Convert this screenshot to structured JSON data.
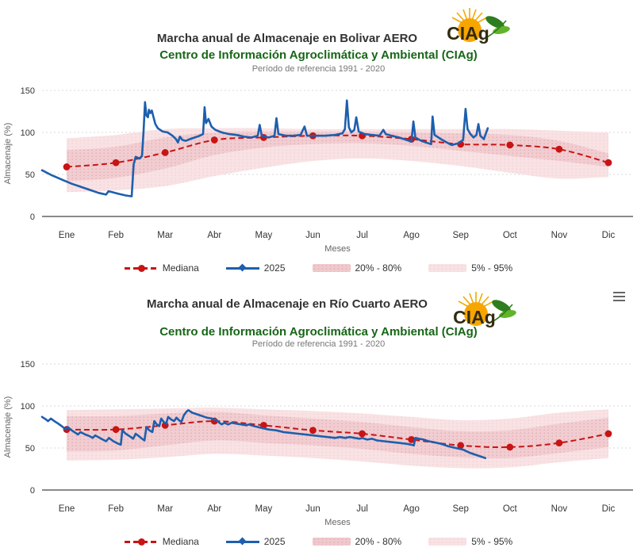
{
  "page": {
    "background": "#ffffff"
  },
  "logo": {
    "text": "CIAg"
  },
  "menu": {
    "tooltip": "Chart context menu"
  },
  "legend": {
    "items": [
      {
        "label": "Mediana",
        "kind": "median",
        "color": "#c81414"
      },
      {
        "label": "2025",
        "kind": "line",
        "color": "#1d5fae"
      },
      {
        "label": "20% - 80%",
        "kind": "band-dark",
        "color": "#f0c9cd"
      },
      {
        "label": "5% - 95%",
        "kind": "band-light",
        "color": "#f9e2e4"
      }
    ]
  },
  "colors": {
    "line2025": "#1d5fae",
    "median": "#c81414",
    "band_20_80": "#f1cdd1",
    "band_20_80_dots": "#e3aeb4",
    "band_5_95": "#f9e2e4",
    "band_5_95_dots": "#f2d3d6",
    "grid": "#d8d8d8",
    "axis": "#8a8a8a",
    "tick_text": "#333333",
    "axis_title_text": "#666666",
    "title_text": "#333333",
    "subtitle_text": "#176617"
  },
  "chart_data": [
    {
      "type": "line",
      "station": "Bolivar AERO",
      "title": "Marcha anual de Almacenaje en Bolivar AERO",
      "subtitle": "Centro de Información Agroclimática y Ambiental (CIAg)",
      "reference": "Período de referencia 1991 - 2020",
      "xlabel": "Meses",
      "ylabel": "Almacenaje (%)",
      "ylim": [
        0,
        150
      ],
      "yticks": [
        0,
        50,
        100,
        150
      ],
      "grid": true,
      "legend_position": "bottom",
      "categories": [
        "Ene",
        "Feb",
        "Mar",
        "Abr",
        "May",
        "Jun",
        "Jul",
        "Ago",
        "Sep",
        "Oct",
        "Nov",
        "Dic"
      ],
      "series": [
        {
          "name": "5% - 95%",
          "type": "arearange",
          "upper": [
            93,
            97,
            104,
            105,
            105,
            104,
            104,
            104,
            104,
            104,
            102,
            100
          ],
          "lower": [
            29,
            31,
            36,
            48,
            58,
            66,
            69,
            66,
            60,
            52,
            45,
            47
          ]
        },
        {
          "name": "20% - 80%",
          "type": "arearange",
          "upper": [
            79,
            83,
            94,
            100,
            101,
            101,
            101,
            100,
            99,
            97,
            90,
            75
          ],
          "lower": [
            42,
            46,
            57,
            73,
            82,
            86,
            87,
            84,
            78,
            72,
            66,
            59
          ]
        },
        {
          "name": "Mediana",
          "type": "line-dashed-markers",
          "values": [
            59,
            64,
            76,
            91,
            94,
            96,
            96,
            92,
            86,
            85,
            80,
            64
          ]
        },
        {
          "name": "2025",
          "type": "line",
          "points_xy": [
            [
              0,
              55
            ],
            [
              0.2,
              49
            ],
            [
              0.4,
              44
            ],
            [
              0.6,
              39
            ],
            [
              0.8,
              35
            ],
            [
              1.0,
              31
            ],
            [
              1.15,
              28
            ],
            [
              1.3,
              26
            ],
            [
              1.35,
              30
            ],
            [
              1.42,
              29
            ],
            [
              1.55,
              27
            ],
            [
              1.7,
              25
            ],
            [
              1.82,
              24
            ],
            [
              1.86,
              62
            ],
            [
              1.9,
              71
            ],
            [
              1.98,
              69
            ],
            [
              2.03,
              72
            ],
            [
              2.06,
              100
            ],
            [
              2.09,
              136
            ],
            [
              2.12,
              120
            ],
            [
              2.15,
              118
            ],
            [
              2.17,
              127
            ],
            [
              2.2,
              123
            ],
            [
              2.23,
              126
            ],
            [
              2.26,
              119
            ],
            [
              2.3,
              110
            ],
            [
              2.35,
              105
            ],
            [
              2.45,
              101
            ],
            [
              2.55,
              100
            ],
            [
              2.65,
              96
            ],
            [
              2.72,
              92
            ],
            [
              2.76,
              88
            ],
            [
              2.8,
              95
            ],
            [
              2.85,
              91
            ],
            [
              2.92,
              90
            ],
            [
              3.0,
              92
            ],
            [
              3.1,
              94
            ],
            [
              3.2,
              96
            ],
            [
              3.27,
              98
            ],
            [
              3.3,
              130
            ],
            [
              3.33,
              111
            ],
            [
              3.38,
              116
            ],
            [
              3.44,
              107
            ],
            [
              3.52,
              103
            ],
            [
              3.65,
              100
            ],
            [
              3.8,
              98
            ],
            [
              3.95,
              97
            ],
            [
              4.1,
              95
            ],
            [
              4.25,
              94
            ],
            [
              4.38,
              96
            ],
            [
              4.42,
              109
            ],
            [
              4.46,
              96
            ],
            [
              4.6,
              94
            ],
            [
              4.72,
              96
            ],
            [
              4.76,
              117
            ],
            [
              4.8,
              98
            ],
            [
              4.95,
              96
            ],
            [
              5.1,
              96
            ],
            [
              5.25,
              97
            ],
            [
              5.33,
              107
            ],
            [
              5.38,
              96
            ],
            [
              5.55,
              96
            ],
            [
              5.75,
              96
            ],
            [
              5.95,
              97
            ],
            [
              6.1,
              99
            ],
            [
              6.15,
              104
            ],
            [
              6.19,
              138
            ],
            [
              6.23,
              106
            ],
            [
              6.28,
              100
            ],
            [
              6.34,
              103
            ],
            [
              6.38,
              118
            ],
            [
              6.43,
              101
            ],
            [
              6.55,
              98
            ],
            [
              6.7,
              97
            ],
            [
              6.85,
              96
            ],
            [
              6.93,
              103
            ],
            [
              6.98,
              98
            ],
            [
              7.1,
              96
            ],
            [
              7.25,
              94
            ],
            [
              7.4,
              91
            ],
            [
              7.5,
              89
            ],
            [
              7.54,
              113
            ],
            [
              7.58,
              94
            ],
            [
              7.7,
              90
            ],
            [
              7.85,
              87
            ],
            [
              7.9,
              86
            ],
            [
              7.93,
              119
            ],
            [
              7.97,
              97
            ],
            [
              8.1,
              92
            ],
            [
              8.25,
              87
            ],
            [
              8.32,
              85
            ],
            [
              8.45,
              87
            ],
            [
              8.55,
              91
            ],
            [
              8.6,
              128
            ],
            [
              8.64,
              104
            ],
            [
              8.7,
              98
            ],
            [
              8.76,
              94
            ],
            [
              8.82,
              97
            ],
            [
              8.86,
              110
            ],
            [
              8.9,
              96
            ],
            [
              8.97,
              92
            ],
            [
              9.05,
              105
            ]
          ]
        }
      ]
    },
    {
      "type": "line",
      "station": "Río Cuarto AERO",
      "title": "Marcha anual de Almacenaje en Río Cuarto AERO",
      "subtitle": "Centro de Información Agroclimática y Ambiental (CIAg)",
      "reference": "Período de referencia 1991 - 2020",
      "xlabel": "Meses",
      "ylabel": "Almacenaje (%)",
      "ylim": [
        0,
        150
      ],
      "yticks": [
        0,
        50,
        100,
        150
      ],
      "grid": true,
      "legend_position": "bottom",
      "categories": [
        "Ene",
        "Feb",
        "Mar",
        "Abr",
        "May",
        "Jun",
        "Jul",
        "Ago",
        "Sep",
        "Oct",
        "Nov",
        "Dic"
      ],
      "series": [
        {
          "name": "5% - 95%",
          "type": "arearange",
          "upper": [
            95,
            96,
            97,
            98,
            96,
            94,
            91,
            87,
            83,
            85,
            92,
            96
          ],
          "lower": [
            35,
            36,
            39,
            43,
            41,
            38,
            34,
            29,
            26,
            27,
            33,
            38
          ]
        },
        {
          "name": "20% - 80%",
          "type": "arearange",
          "upper": [
            88,
            88,
            91,
            93,
            89,
            85,
            81,
            75,
            70,
            71,
            79,
            86
          ],
          "lower": [
            46,
            47,
            53,
            59,
            56,
            53,
            49,
            43,
            39,
            38,
            44,
            51
          ]
        },
        {
          "name": "Mediana",
          "type": "line-dashed-markers",
          "values": [
            72,
            72,
            77,
            82,
            77,
            71,
            67,
            60,
            53,
            51,
            56,
            67
          ]
        },
        {
          "name": "2025",
          "type": "line",
          "points_xy": [
            [
              0,
              87
            ],
            [
              0.08,
              84
            ],
            [
              0.12,
              82
            ],
            [
              0.18,
              85
            ],
            [
              0.25,
              82
            ],
            [
              0.33,
              79
            ],
            [
              0.4,
              76
            ],
            [
              0.48,
              72
            ],
            [
              0.52,
              75
            ],
            [
              0.6,
              71
            ],
            [
              0.68,
              68
            ],
            [
              0.73,
              66
            ],
            [
              0.78,
              69
            ],
            [
              0.88,
              66
            ],
            [
              0.97,
              64
            ],
            [
              1.03,
              62
            ],
            [
              1.08,
              65
            ],
            [
              1.2,
              61
            ],
            [
              1.3,
              58
            ],
            [
              1.36,
              62
            ],
            [
              1.45,
              58
            ],
            [
              1.55,
              55
            ],
            [
              1.6,
              54
            ],
            [
              1.63,
              71
            ],
            [
              1.7,
              67
            ],
            [
              1.78,
              64
            ],
            [
              1.85,
              61
            ],
            [
              1.9,
              67
            ],
            [
              1.97,
              64
            ],
            [
              2.03,
              61
            ],
            [
              2.08,
              59
            ],
            [
              2.12,
              75
            ],
            [
              2.18,
              71
            ],
            [
              2.24,
              69
            ],
            [
              2.28,
              82
            ],
            [
              2.33,
              78
            ],
            [
              2.38,
              76
            ],
            [
              2.42,
              85
            ],
            [
              2.47,
              81
            ],
            [
              2.52,
              79
            ],
            [
              2.56,
              87
            ],
            [
              2.62,
              84
            ],
            [
              2.68,
              82
            ],
            [
              2.73,
              86
            ],
            [
              2.78,
              83
            ],
            [
              2.83,
              81
            ],
            [
              2.88,
              89
            ],
            [
              2.93,
              93
            ],
            [
              2.97,
              95
            ],
            [
              3.05,
              92
            ],
            [
              3.15,
              90
            ],
            [
              3.25,
              88
            ],
            [
              3.35,
              86
            ],
            [
              3.45,
              85
            ],
            [
              3.55,
              83
            ],
            [
              3.6,
              80
            ],
            [
              3.65,
              78
            ],
            [
              3.7,
              80
            ],
            [
              3.78,
              78
            ],
            [
              3.85,
              80
            ],
            [
              3.95,
              79
            ],
            [
              4.05,
              78
            ],
            [
              4.15,
              77
            ],
            [
              4.2,
              78
            ],
            [
              4.3,
              76
            ],
            [
              4.45,
              74
            ],
            [
              4.6,
              72
            ],
            [
              4.75,
              71
            ],
            [
              4.9,
              69
            ],
            [
              5.05,
              68
            ],
            [
              5.2,
              67
            ],
            [
              5.35,
              66
            ],
            [
              5.5,
              65
            ],
            [
              5.65,
              64
            ],
            [
              5.8,
              63
            ],
            [
              5.95,
              62
            ],
            [
              6.05,
              63
            ],
            [
              6.15,
              62
            ],
            [
              6.25,
              63
            ],
            [
              6.35,
              62
            ],
            [
              6.45,
              61
            ],
            [
              6.5,
              62
            ],
            [
              6.6,
              60
            ],
            [
              6.7,
              61
            ],
            [
              6.8,
              59
            ],
            [
              6.95,
              58
            ],
            [
              7.1,
              57
            ],
            [
              7.25,
              56
            ],
            [
              7.4,
              55
            ],
            [
              7.5,
              54
            ],
            [
              7.55,
              53
            ],
            [
              7.58,
              62
            ],
            [
              7.65,
              61
            ],
            [
              7.75,
              60
            ],
            [
              7.85,
              58
            ],
            [
              7.95,
              57
            ],
            [
              8.1,
              55
            ],
            [
              8.25,
              52
            ],
            [
              8.4,
              50
            ],
            [
              8.55,
              48
            ],
            [
              8.7,
              44
            ],
            [
              8.85,
              41
            ],
            [
              9.0,
              38
            ]
          ]
        }
      ]
    }
  ]
}
